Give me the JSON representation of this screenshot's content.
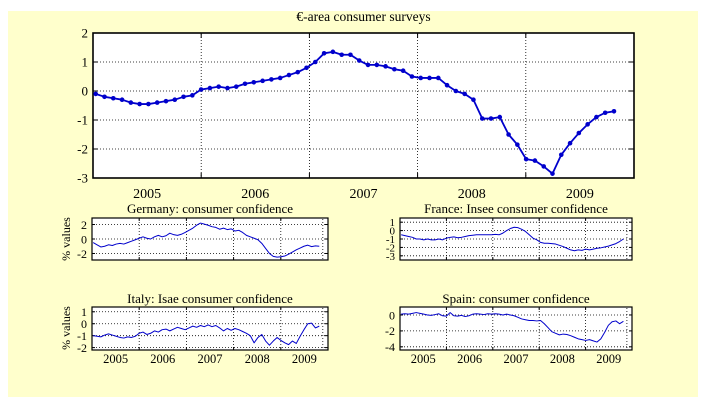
{
  "figure": {
    "background_color": "#FFFFCC",
    "plot_background_color": "#FFFFFF",
    "axis_color": "#000000",
    "grid_style": "dotted"
  },
  "chart_data": [
    {
      "id": "euro-area",
      "type": "line",
      "title": "€-area consumer surveys",
      "ylabel": "",
      "line_color": "#0000CC",
      "markers": true,
      "xlim": [
        2004.5,
        2009.5
      ],
      "ylim": [
        -3,
        2
      ],
      "y_ticks": [
        2,
        1,
        0,
        -1,
        -2,
        -3
      ],
      "x_tick_labels": [
        "2005",
        "2006",
        "2007",
        "2008",
        "2009"
      ],
      "values": [
        -0.1,
        -0.2,
        -0.25,
        -0.3,
        -0.4,
        -0.45,
        -0.45,
        -0.4,
        -0.35,
        -0.3,
        -0.2,
        -0.15,
        0.05,
        0.1,
        0.15,
        0.1,
        0.15,
        0.25,
        0.3,
        0.35,
        0.4,
        0.45,
        0.55,
        0.65,
        0.8,
        1.0,
        1.3,
        1.35,
        1.25,
        1.25,
        1.05,
        0.9,
        0.9,
        0.85,
        0.75,
        0.7,
        0.5,
        0.45,
        0.45,
        0.45,
        0.2,
        0.0,
        -0.1,
        -0.3,
        -0.95,
        -0.95,
        -0.9,
        -1.5,
        -1.85,
        -2.35,
        -2.4,
        -2.6,
        -2.85,
        -2.2,
        -1.8,
        -1.45,
        -1.15,
        -0.9,
        -0.75,
        -0.7
      ]
    },
    {
      "id": "germany",
      "type": "line",
      "title": "Germany: consumer confidence",
      "ylabel": "% values",
      "line_color": "#0000CC",
      "markers": false,
      "xlim": [
        2004.5,
        2009.5
      ],
      "ylim": [
        -2.9,
        2.9
      ],
      "y_ticks": [
        2,
        0,
        -2
      ],
      "x_tick_labels": [],
      "values": [
        -0.5,
        -0.8,
        -1.1,
        -1.0,
        -0.8,
        -0.9,
        -0.7,
        -0.6,
        -0.7,
        -0.5,
        -0.3,
        -0.1,
        0.1,
        0.3,
        0.1,
        0.0,
        0.3,
        0.5,
        0.3,
        0.45,
        0.8,
        0.6,
        0.5,
        0.65,
        0.9,
        1.2,
        1.5,
        1.9,
        2.2,
        2.05,
        1.9,
        1.7,
        1.6,
        1.35,
        1.5,
        1.3,
        1.4,
        1.1,
        1.2,
        0.9,
        0.5,
        0.3,
        0.1,
        -0.1,
        -0.6,
        -1.3,
        -2.0,
        -2.4,
        -2.5,
        -2.45,
        -2.35,
        -2.1,
        -1.8,
        -1.5,
        -1.25,
        -1.0,
        -0.85,
        -1.05,
        -0.95,
        -1.0
      ]
    },
    {
      "id": "france",
      "type": "line",
      "title": "France: Insee consumer confidence",
      "ylabel": "",
      "line_color": "#0000CC",
      "markers": false,
      "xlim": [
        2004.5,
        2009.5
      ],
      "ylim": [
        -3.5,
        1.5
      ],
      "y_ticks": [
        1,
        0,
        -1,
        -2,
        -3
      ],
      "x_tick_labels": [],
      "values": [
        -0.5,
        -0.6,
        -0.7,
        -0.8,
        -1.0,
        -1.0,
        -1.1,
        -1.0,
        -1.1,
        -1.1,
        -1.0,
        -1.1,
        -0.9,
        -0.8,
        -0.75,
        -0.85,
        -0.8,
        -0.7,
        -0.6,
        -0.55,
        -0.5,
        -0.5,
        -0.5,
        -0.5,
        -0.5,
        -0.45,
        -0.5,
        -0.3,
        0.0,
        0.25,
        0.4,
        0.35,
        0.15,
        -0.1,
        -0.5,
        -0.9,
        -1.1,
        -1.4,
        -1.5,
        -1.5,
        -1.55,
        -1.6,
        -1.75,
        -1.9,
        -2.1,
        -2.3,
        -2.4,
        -2.3,
        -2.35,
        -2.2,
        -2.3,
        -2.2,
        -2.1,
        -2.05,
        -1.95,
        -1.85,
        -1.7,
        -1.55,
        -1.3,
        -1.0
      ]
    },
    {
      "id": "italy",
      "type": "line",
      "title": "Italy: Isae consumer confidence",
      "ylabel": "% values",
      "line_color": "#0000CC",
      "markers": false,
      "xlim": [
        2004.5,
        2009.5
      ],
      "ylim": [
        -2.2,
        1.4
      ],
      "y_ticks": [
        1,
        0,
        -1,
        -2
      ],
      "x_tick_labels": [
        "2005",
        "2006",
        "2007",
        "2008",
        "2009"
      ],
      "values": [
        -1.0,
        -1.05,
        -1.1,
        -0.95,
        -0.85,
        -0.95,
        -1.05,
        -1.15,
        -1.2,
        -1.1,
        -1.15,
        -1.05,
        -0.8,
        -0.7,
        -0.9,
        -0.8,
        -0.6,
        -0.7,
        -0.5,
        -0.45,
        -0.6,
        -0.45,
        -0.3,
        -0.4,
        -0.5,
        -0.35,
        -0.2,
        -0.3,
        -0.15,
        -0.25,
        -0.1,
        -0.25,
        -0.15,
        -0.35,
        -0.6,
        -0.4,
        -0.55,
        -0.4,
        -0.5,
        -0.65,
        -0.8,
        -1.0,
        -1.6,
        -1.15,
        -0.9,
        -1.45,
        -1.8,
        -1.45,
        -1.15,
        -1.4,
        -1.6,
        -1.75,
        -1.45,
        -1.65,
        -1.05,
        -0.5,
        0.0,
        0.05,
        -0.35,
        -0.2
      ]
    },
    {
      "id": "spain",
      "type": "line",
      "title": "Spain: consumer confidence",
      "ylabel": "",
      "line_color": "#0000CC",
      "markers": false,
      "xlim": [
        2004.5,
        2009.5
      ],
      "ylim": [
        -4.4,
        1.0
      ],
      "y_ticks": [
        0,
        -2,
        -4
      ],
      "x_tick_labels": [
        "2005",
        "2006",
        "2007",
        "2008",
        "2009"
      ],
      "values": [
        0.1,
        0.15,
        0.1,
        0.2,
        0.3,
        0.2,
        0.1,
        0.0,
        -0.05,
        0.05,
        0.15,
        -0.1,
        -0.15,
        0.3,
        -0.1,
        -0.15,
        -0.05,
        -0.2,
        -0.1,
        0.1,
        0.15,
        0.1,
        0.05,
        0.15,
        0.1,
        0.15,
        0.1,
        0.0,
        0.1,
        0.0,
        -0.1,
        -0.3,
        -0.5,
        -0.6,
        -0.7,
        -0.7,
        -0.75,
        -0.7,
        -1.1,
        -1.6,
        -2.1,
        -2.3,
        -2.5,
        -2.4,
        -2.45,
        -2.6,
        -2.8,
        -3.0,
        -3.1,
        -3.2,
        -3.1,
        -3.25,
        -3.4,
        -3.0,
        -2.2,
        -1.3,
        -0.85,
        -0.75,
        -1.1,
        -0.8
      ]
    }
  ]
}
